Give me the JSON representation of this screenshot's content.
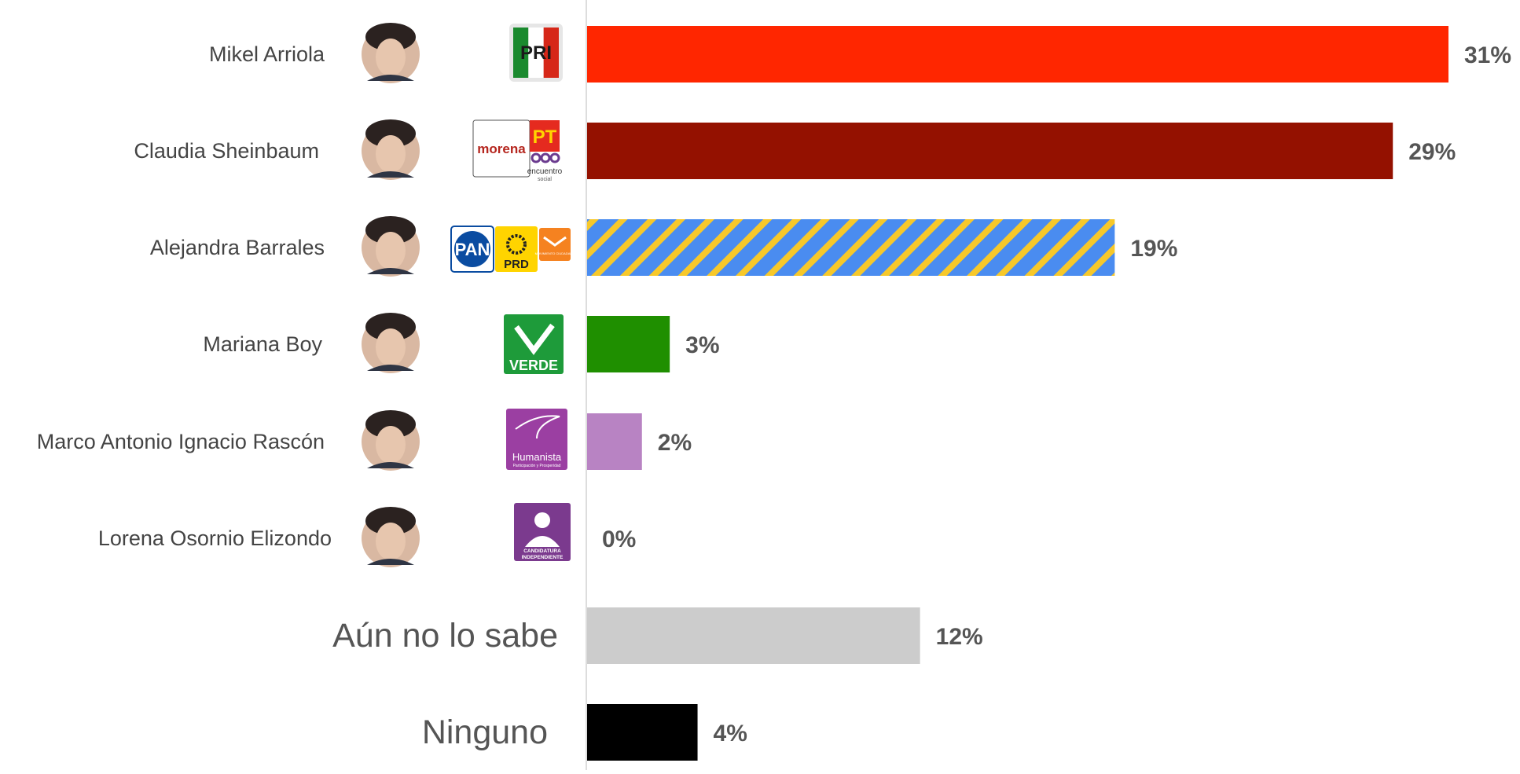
{
  "chart_data": {
    "type": "bar",
    "orientation": "horizontal",
    "xlim": [
      0,
      31
    ],
    "grid": false,
    "legend": "none",
    "value_suffix": "%",
    "rows": [
      {
        "label": "Mikel Arriola",
        "value": 31,
        "display": "31%",
        "color": "#ff2600",
        "pattern": "solid",
        "parties": [
          {
            "id": "pri",
            "icon": "pri-logo-icon",
            "text": "PRI",
            "colors": [
              "#1a8a2e",
              "#ffffff",
              "#d62718"
            ]
          }
        ]
      },
      {
        "label": "Claudia Sheinbaum",
        "value": 29,
        "display": "29%",
        "color": "#941100",
        "pattern": "solid",
        "parties": [
          {
            "id": "morena",
            "icon": "morena-logo-icon",
            "text": "morena",
            "colors": [
              "#b5261e",
              "#ffffff"
            ]
          },
          {
            "id": "pt",
            "icon": "pt-logo-icon",
            "text": "PT",
            "colors": [
              "#e52a1f",
              "#ffd400"
            ]
          },
          {
            "id": "pes",
            "icon": "encuentro-social-logo-icon",
            "text": "encuentro",
            "subtext": "social",
            "colors": [
              "#6b3b8f"
            ]
          }
        ]
      },
      {
        "label": "Alejandra Barrales",
        "value": 19,
        "display": "19%",
        "color": "#4a8cf0",
        "stripe_color": "#f7c82a",
        "pattern": "striped",
        "parties": [
          {
            "id": "pan",
            "icon": "pan-logo-icon",
            "text": "PAN",
            "colors": [
              "#0a4ca1",
              "#ffffff"
            ]
          },
          {
            "id": "prd",
            "icon": "prd-logo-icon",
            "text": "PRD",
            "colors": [
              "#ffd400",
              "#222222"
            ]
          },
          {
            "id": "mc",
            "icon": "movimiento-ciudadano-logo-icon",
            "text": "MOVIMIENTO CIUDADANO",
            "colors": [
              "#f58220",
              "#ffffff"
            ]
          }
        ]
      },
      {
        "label": "Mariana Boy",
        "value": 3,
        "display": "3%",
        "color": "#1f8f00",
        "pattern": "solid",
        "parties": [
          {
            "id": "verde",
            "icon": "verde-logo-icon",
            "text": "VERDE",
            "colors": [
              "#1e9b3a",
              "#ffffff"
            ]
          }
        ]
      },
      {
        "label": "Marco Antonio Ignacio Rascón",
        "value": 2,
        "display": "2%",
        "color": "#b883c3",
        "pattern": "solid",
        "parties": [
          {
            "id": "humanista",
            "icon": "humanista-logo-icon",
            "text": "Humanista",
            "subtext": "Participación y Prosperidad",
            "colors": [
              "#9b3fa2",
              "#ffffff"
            ]
          }
        ]
      },
      {
        "label": "Lorena Osornio Elizondo",
        "value": 0,
        "display": "0%",
        "color": "#7a7a7a",
        "pattern": "solid",
        "parties": [
          {
            "id": "independiente",
            "icon": "candidatura-independiente-logo-icon",
            "text": "CANDIDATURA",
            "subtext": "INDEPENDIENTE",
            "colors": [
              "#7b3a8e",
              "#ffffff"
            ]
          }
        ]
      },
      {
        "label": "Aún no lo sabe",
        "value": 12,
        "display": "12%",
        "color": "#cccccc",
        "pattern": "solid",
        "large_label": true,
        "parties": []
      },
      {
        "label": "Ninguno",
        "value": 4,
        "display": "4%",
        "color": "#000000",
        "pattern": "solid",
        "large_label": true,
        "parties": []
      }
    ]
  }
}
